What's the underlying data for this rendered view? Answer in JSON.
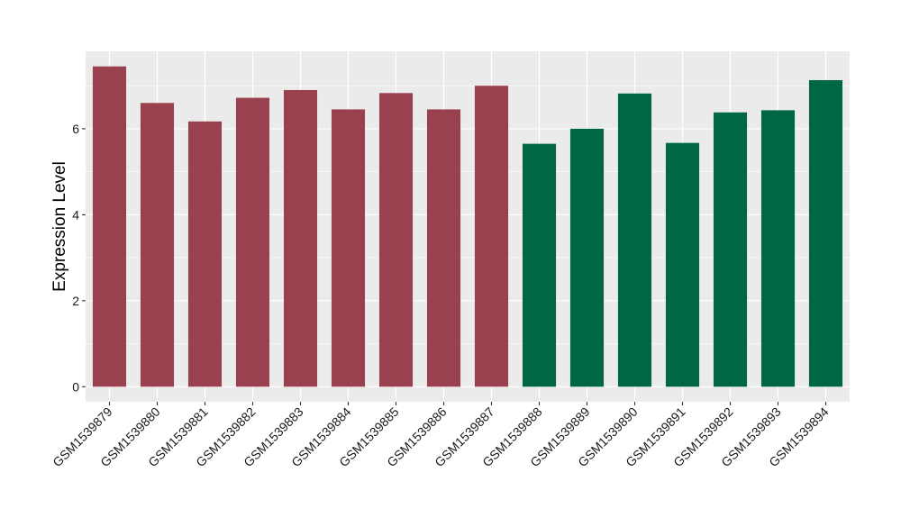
{
  "chart_data": {
    "type": "bar",
    "title": "",
    "xlabel": "",
    "ylabel": "Expression Level",
    "categories": [
      "GSM1539879",
      "GSM1539880",
      "GSM1539881",
      "GSM1539882",
      "GSM1539883",
      "GSM1539884",
      "GSM1539885",
      "GSM1539886",
      "GSM1539887",
      "GSM1539888",
      "GSM1539889",
      "GSM1539890",
      "GSM1539891",
      "GSM1539892",
      "GSM1539893",
      "GSM1539894"
    ],
    "values": [
      7.45,
      6.6,
      6.17,
      6.72,
      6.9,
      6.45,
      6.83,
      6.45,
      7.0,
      5.65,
      6.0,
      6.82,
      5.67,
      6.38,
      6.43,
      7.13
    ],
    "bar_colors": [
      "#9a414f",
      "#9a414f",
      "#9a414f",
      "#9a414f",
      "#9a414f",
      "#9a414f",
      "#9a414f",
      "#9a414f",
      "#9a414f",
      "#006743",
      "#006743",
      "#006743",
      "#006743",
      "#006743",
      "#006743",
      "#006743"
    ],
    "ylim": [
      -0.35,
      7.8
    ],
    "yticks": [
      0,
      2,
      4,
      6
    ],
    "ytick_labels": [
      "0",
      "2",
      "4",
      "6"
    ],
    "grid": true,
    "panel_background": "#ebebeb",
    "grid_color": "#ffffff",
    "legend": "none"
  }
}
